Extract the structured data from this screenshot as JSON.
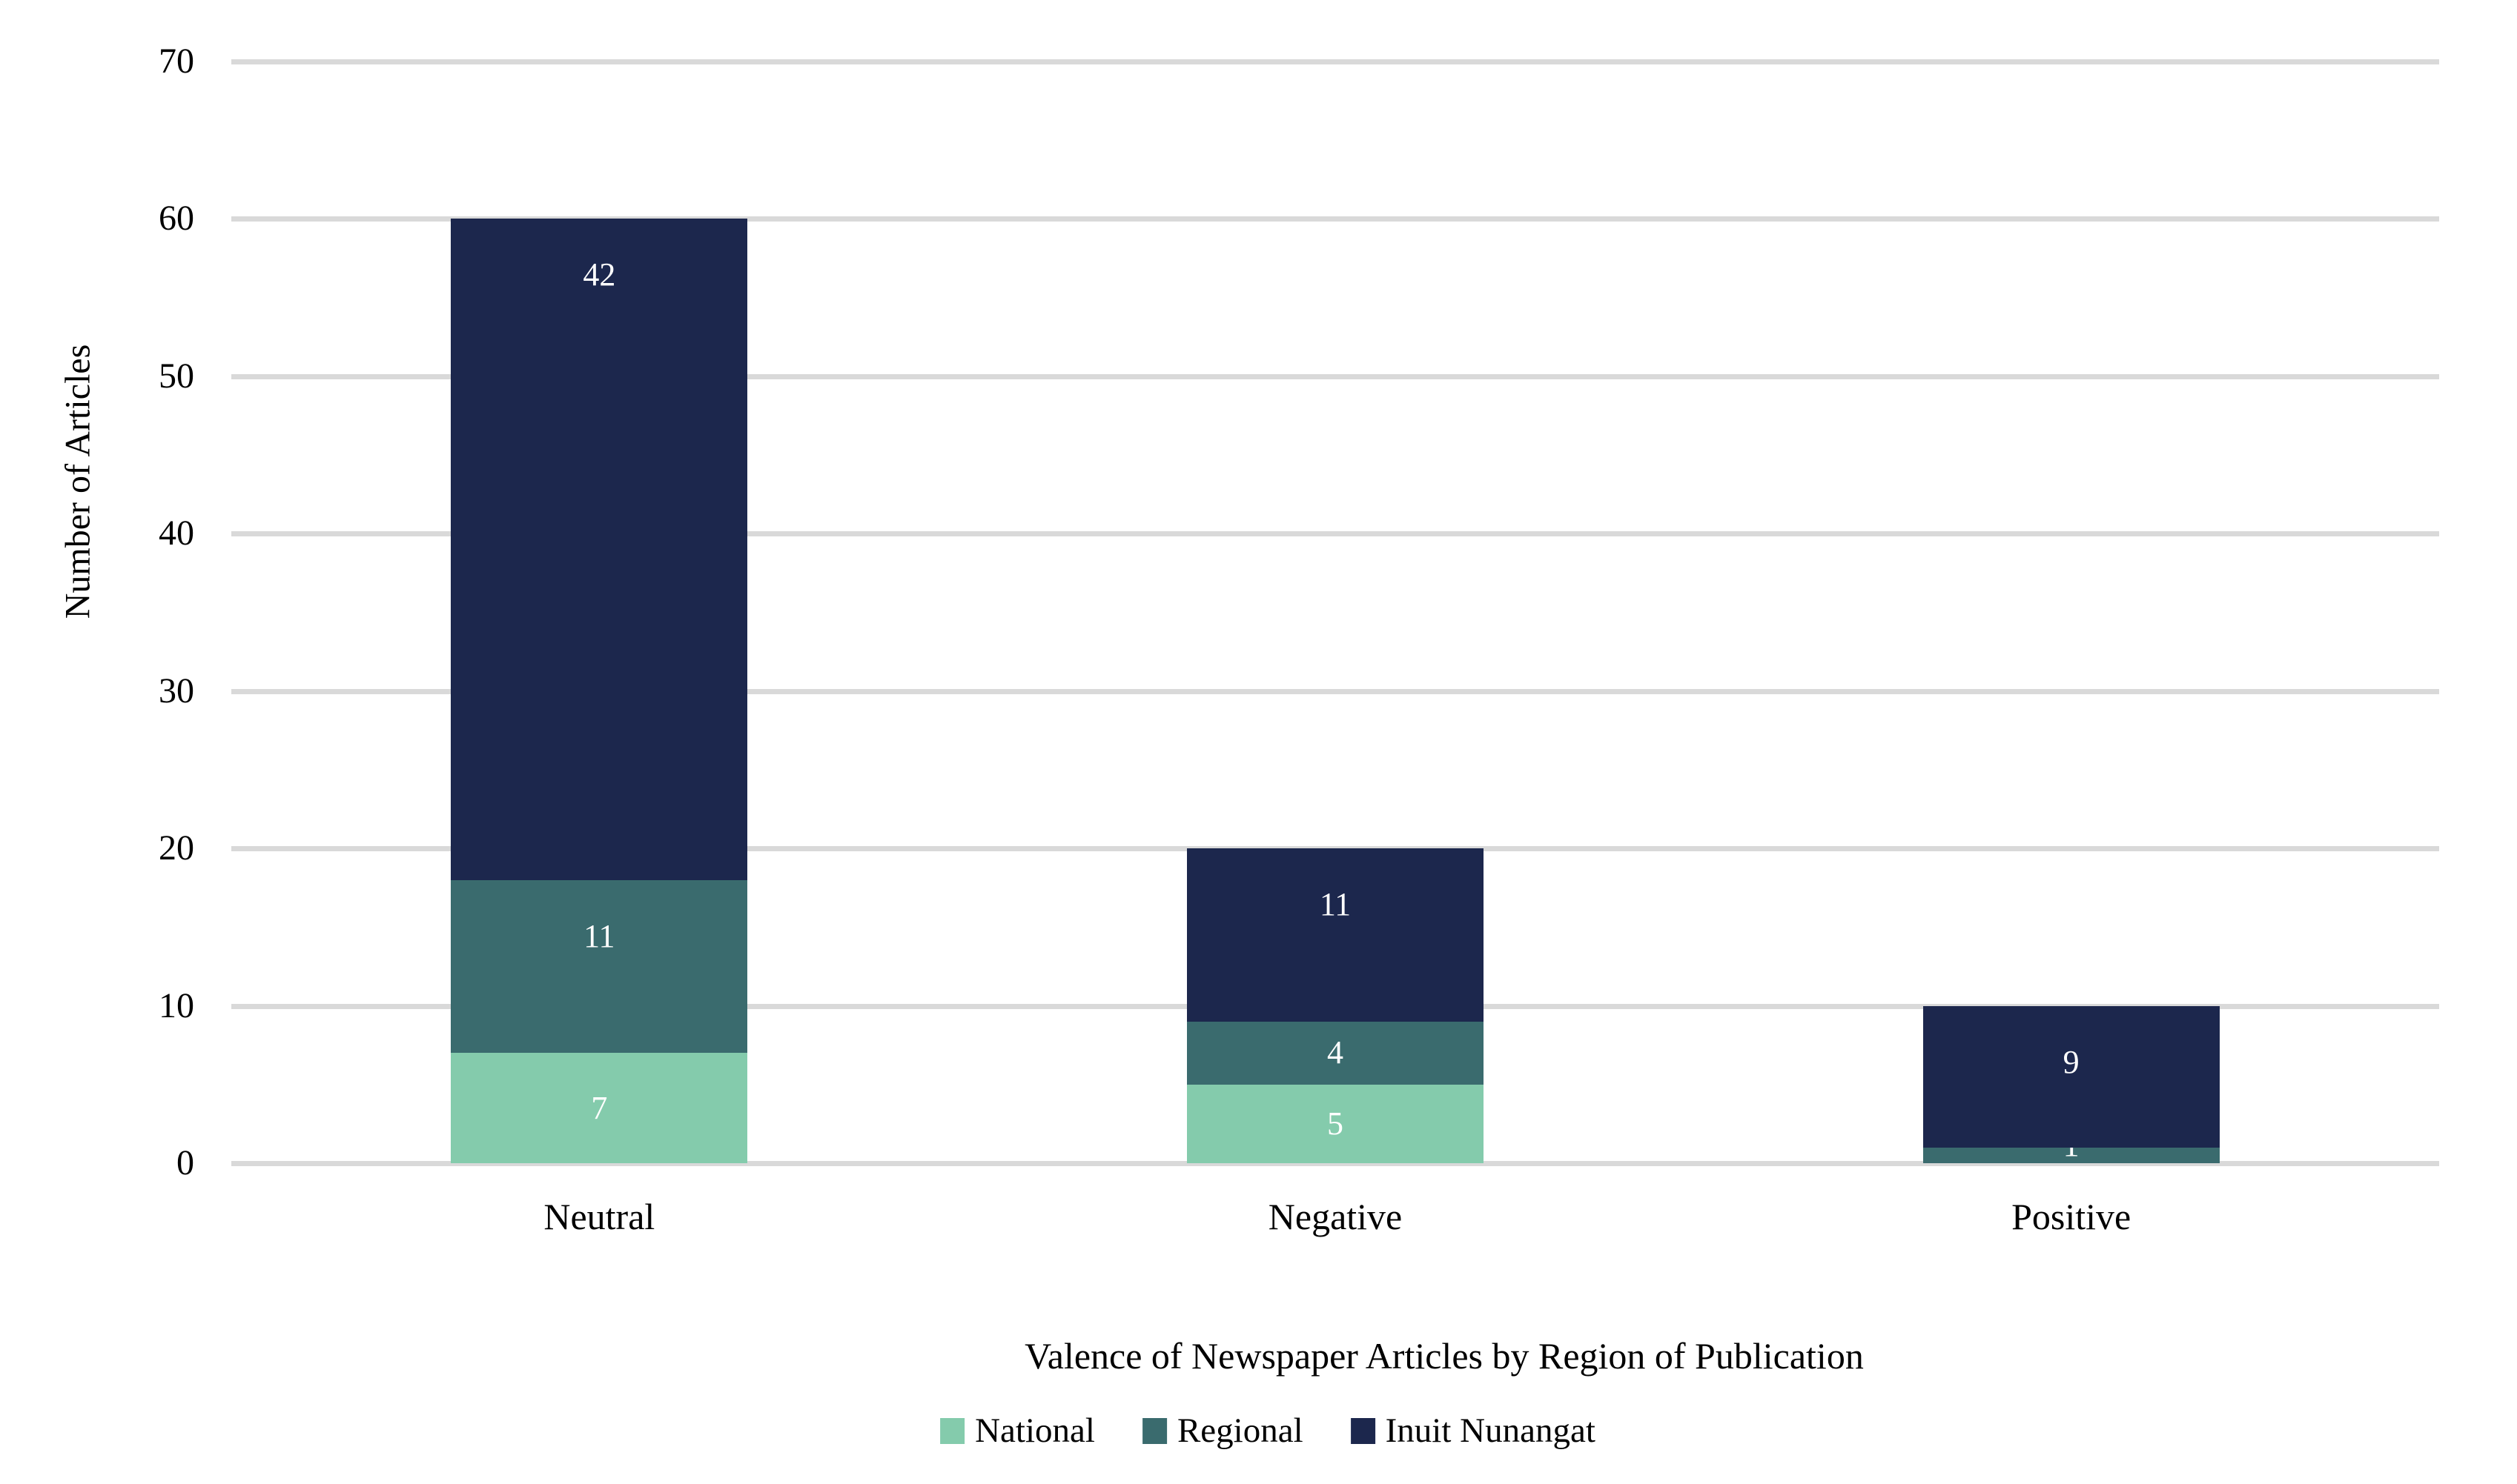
{
  "chart_data": {
    "type": "bar",
    "stacked": true,
    "title": "",
    "xlabel": "Valence of Newspaper Articles by Region of Publication",
    "ylabel": "Number of Articles",
    "categories": [
      "Neutral",
      "Negative",
      "Positive"
    ],
    "series": [
      {
        "name": "National",
        "color": "#84CBAC",
        "values": [
          7,
          5,
          0
        ]
      },
      {
        "name": "Regional",
        "color": "#3A6B6E",
        "values": [
          11,
          4,
          1
        ]
      },
      {
        "name": "Inuit Nunangat",
        "color": "#1C274D",
        "values": [
          42,
          11,
          9
        ]
      }
    ],
    "category_totals": [
      60,
      20,
      10
    ],
    "ylim": [
      0,
      70
    ],
    "ytick_step": 10,
    "yticks": [
      "0",
      "10",
      "20",
      "30",
      "40",
      "50",
      "60",
      "70"
    ],
    "grid": true,
    "gridline_color": "#D9D9D9",
    "legend_position": "bottom",
    "data_label_color": "#FFFFFF",
    "text_color": "#000000",
    "background_color": "#FFFFFF"
  }
}
